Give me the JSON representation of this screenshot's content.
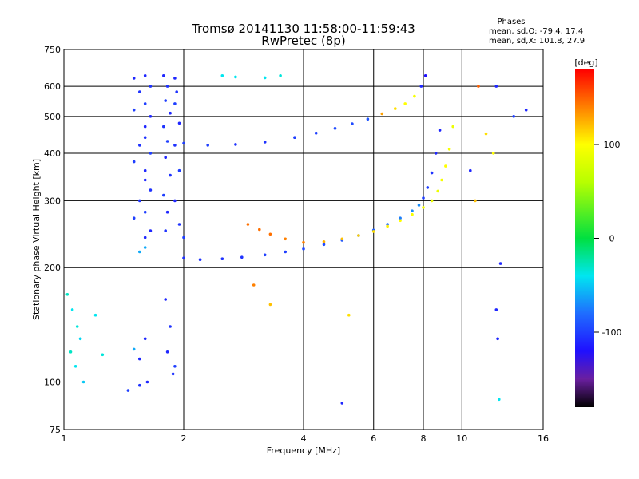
{
  "chart_data": {
    "type": "scatter",
    "title": "Tromsø 20141130 11:58:00-11:59:43",
    "subtitle": "RwPretec (8p)",
    "stats": {
      "heading": "Phases",
      "line_o": "mean, sd,O: -79.4, 17.4",
      "line_x": "mean, sd,X: 101.8, 27.9"
    },
    "xlabel": "Frequency [MHz]",
    "ylabel": "Stationary phase Virtual Height [km]",
    "x_scale": "log",
    "y_scale": "log",
    "xlim": [
      1,
      16
    ],
    "ylim": [
      75,
      750
    ],
    "grid": true,
    "x_ticks": [
      {
        "value": 1,
        "label": "1"
      },
      {
        "value": 2,
        "label": "2"
      },
      {
        "value": 4,
        "label": "4"
      },
      {
        "value": 6,
        "label": "6"
      },
      {
        "value": 8,
        "label": "8"
      },
      {
        "value": 10,
        "label": "10"
      },
      {
        "value": 16,
        "label": "16"
      }
    ],
    "y_ticks": [
      {
        "value": 75,
        "label": "75"
      },
      {
        "value": 100,
        "label": "100"
      },
      {
        "value": 200,
        "label": "200"
      },
      {
        "value": 300,
        "label": "300"
      },
      {
        "value": 400,
        "label": "400"
      },
      {
        "value": 500,
        "label": "500"
      },
      {
        "value": 600,
        "label": "600"
      },
      {
        "value": 750,
        "label": "750"
      }
    ],
    "colorbar": {
      "label": "[deg]",
      "range": [
        -180,
        180
      ],
      "ticks": [
        {
          "value": 100,
          "label": "100"
        },
        {
          "value": 0,
          "label": "0"
        },
        {
          "value": -100,
          "label": "-100"
        }
      ],
      "stops": [
        {
          "value": -180,
          "color": "#000000"
        },
        {
          "value": -150,
          "color": "#6a1fa0"
        },
        {
          "value": -120,
          "color": "#1f10ff"
        },
        {
          "value": -80,
          "color": "#1f6dff"
        },
        {
          "value": -40,
          "color": "#00e6f0"
        },
        {
          "value": 0,
          "color": "#00e040"
        },
        {
          "value": 60,
          "color": "#b8ff00"
        },
        {
          "value": 100,
          "color": "#ffff00"
        },
        {
          "value": 140,
          "color": "#ff8000"
        },
        {
          "value": 180,
          "color": "#ff0000"
        }
      ]
    },
    "series": [
      {
        "kind": "o_trace_e_layer",
        "points": [
          [
            2.0,
            212
          ],
          [
            2.2,
            210
          ],
          [
            2.5,
            211
          ],
          [
            2.8,
            213
          ],
          [
            3.2,
            216
          ],
          [
            3.6,
            220
          ],
          [
            4.0,
            224
          ],
          [
            4.5,
            230
          ],
          [
            5.0,
            236
          ],
          [
            5.5,
            243
          ],
          [
            6.0,
            251
          ],
          [
            6.5,
            260
          ],
          [
            7.0,
            270
          ],
          [
            7.5,
            282
          ],
          [
            7.8,
            292
          ],
          [
            8.0,
            305
          ],
          [
            8.2,
            325
          ],
          [
            8.4,
            355
          ],
          [
            8.6,
            400
          ],
          [
            8.8,
            460
          ]
        ],
        "phases": [
          -105,
          -105,
          -105,
          -105,
          -100,
          -100,
          -95,
          -95,
          -90,
          -85,
          -85,
          -80,
          -75,
          -70,
          -70,
          -100,
          -100,
          -105,
          -110,
          -110
        ]
      },
      {
        "kind": "x_trace_e_layer",
        "points": [
          [
            2.9,
            260
          ],
          [
            3.1,
            252
          ],
          [
            3.3,
            245
          ],
          [
            3.6,
            238
          ],
          [
            4.0,
            233
          ],
          [
            4.5,
            234
          ],
          [
            5.0,
            238
          ],
          [
            5.5,
            243
          ],
          [
            6.0,
            249
          ],
          [
            6.5,
            257
          ],
          [
            7.0,
            266
          ],
          [
            7.5,
            276
          ],
          [
            8.0,
            288
          ],
          [
            8.4,
            300
          ],
          [
            8.7,
            318
          ],
          [
            8.9,
            340
          ],
          [
            9.1,
            370
          ],
          [
            9.3,
            410
          ],
          [
            9.5,
            470
          ]
        ],
        "phases": [
          145,
          145,
          145,
          140,
          140,
          125,
          120,
          115,
          110,
          105,
          100,
          95,
          95,
          90,
          90,
          95,
          100,
          95,
          90
        ]
      },
      {
        "kind": "o_trace_f_layer",
        "points": [
          [
            2.0,
            425
          ],
          [
            2.3,
            420
          ],
          [
            2.7,
            422
          ],
          [
            3.2,
            428
          ],
          [
            3.8,
            440
          ],
          [
            4.3,
            452
          ],
          [
            4.8,
            465
          ],
          [
            5.3,
            478
          ],
          [
            5.8,
            492
          ],
          [
            6.3,
            508
          ],
          [
            6.8,
            524
          ],
          [
            7.2,
            540
          ],
          [
            7.6,
            565
          ],
          [
            7.9,
            600
          ],
          [
            8.1,
            640
          ]
        ],
        "phases": [
          -100,
          -100,
          -105,
          -105,
          -100,
          -100,
          -95,
          -95,
          -90,
          130,
          110,
          100,
          95,
          -110,
          -120
        ]
      },
      {
        "kind": "spread_f_band_1",
        "points": [
          [
            1.5,
            630
          ],
          [
            1.55,
            580
          ],
          [
            1.5,
            520
          ],
          [
            1.6,
            470
          ],
          [
            1.55,
            420
          ],
          [
            1.5,
            380
          ],
          [
            1.6,
            340
          ],
          [
            1.55,
            300
          ],
          [
            1.5,
            270
          ],
          [
            1.6,
            240
          ],
          [
            1.55,
            220
          ],
          [
            1.6,
            640
          ],
          [
            1.65,
            600
          ],
          [
            1.6,
            540
          ],
          [
            1.65,
            500
          ],
          [
            1.6,
            440
          ],
          [
            1.65,
            400
          ],
          [
            1.6,
            360
          ],
          [
            1.65,
            320
          ],
          [
            1.6,
            280
          ],
          [
            1.65,
            250
          ],
          [
            1.6,
            226
          ]
        ],
        "phases": [
          -110,
          -105,
          -100,
          -110,
          -105,
          -100,
          -110,
          -105,
          -100,
          -110,
          -60,
          -110,
          -105,
          -100,
          -110,
          -105,
          -100,
          -110,
          -105,
          -100,
          -110,
          -60
        ]
      },
      {
        "kind": "spread_f_band_2",
        "points": [
          [
            1.78,
            640
          ],
          [
            1.82,
            600
          ],
          [
            1.8,
            550
          ],
          [
            1.85,
            510
          ],
          [
            1.78,
            470
          ],
          [
            1.82,
            430
          ],
          [
            1.8,
            390
          ],
          [
            1.85,
            350
          ],
          [
            1.78,
            310
          ],
          [
            1.82,
            280
          ],
          [
            1.8,
            250
          ],
          [
            1.9,
            630
          ],
          [
            1.92,
            580
          ],
          [
            1.9,
            540
          ],
          [
            1.95,
            480
          ],
          [
            1.9,
            420
          ],
          [
            1.95,
            360
          ],
          [
            1.9,
            300
          ],
          [
            1.95,
            260
          ],
          [
            2.0,
            240
          ]
        ],
        "phases": [
          -110,
          -105,
          -100,
          -110,
          -105,
          -100,
          -110,
          -105,
          -100,
          -110,
          -105,
          -110,
          -105,
          -100,
          -110,
          -105,
          -100,
          -110,
          -105,
          -100
        ]
      },
      {
        "kind": "low_height_echoes",
        "points": [
          [
            1.02,
            170
          ],
          [
            1.05,
            155
          ],
          [
            1.08,
            140
          ],
          [
            1.1,
            130
          ],
          [
            1.04,
            120
          ],
          [
            1.07,
            110
          ],
          [
            1.12,
            100
          ],
          [
            1.2,
            150
          ],
          [
            1.25,
            118
          ],
          [
            1.5,
            122
          ],
          [
            1.55,
            115
          ],
          [
            1.6,
            130
          ],
          [
            1.45,
            95
          ],
          [
            1.55,
            98
          ],
          [
            1.62,
            100
          ],
          [
            1.8,
            165
          ],
          [
            1.85,
            140
          ],
          [
            1.82,
            120
          ],
          [
            1.9,
            110
          ],
          [
            1.88,
            105
          ]
        ],
        "phases": [
          -30,
          -40,
          -35,
          -45,
          -30,
          -40,
          -50,
          -40,
          -35,
          -60,
          -110,
          -110,
          -100,
          -105,
          -110,
          -110,
          -105,
          -110,
          -100,
          -105
        ]
      },
      {
        "kind": "isolated_points",
        "points": [
          [
            2.5,
            640
          ],
          [
            2.7,
            635
          ],
          [
            3.2,
            632
          ],
          [
            3.5,
            640
          ],
          [
            5.0,
            88
          ],
          [
            5.2,
            150
          ],
          [
            3.0,
            180
          ],
          [
            3.3,
            160
          ],
          [
            10.5,
            360
          ],
          [
            11.0,
            600
          ],
          [
            12.2,
            600
          ],
          [
            12.5,
            205
          ],
          [
            12.3,
            130
          ],
          [
            12.2,
            155
          ],
          [
            13.5,
            500
          ],
          [
            14.5,
            520
          ],
          [
            12.4,
            90
          ],
          [
            10.8,
            300
          ],
          [
            11.5,
            450
          ],
          [
            12.0,
            400
          ]
        ],
        "phases": [
          -40,
          -40,
          -40,
          -35,
          -110,
          110,
          140,
          120,
          -110,
          150,
          -110,
          -110,
          -110,
          -110,
          -100,
          -110,
          -40,
          120,
          110,
          100
        ]
      }
    ]
  }
}
